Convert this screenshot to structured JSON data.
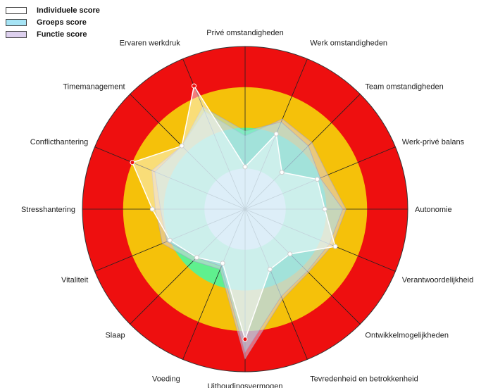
{
  "legend": {
    "items": [
      {
        "label": "Individuele score",
        "color": "#ffffff"
      },
      {
        "label": "Groeps score",
        "color": "#a6e4f5"
      },
      {
        "label": "Functie score",
        "color": "#ddd0ee"
      }
    ]
  },
  "colors": {
    "red": "#ee0f0f",
    "orange": "#f5c10a",
    "green": "#5ff08e",
    "individual": "#ffffff",
    "group": "#a6e4f5",
    "function": "#ddd0ee"
  },
  "chart_data": {
    "type": "radar",
    "axes": [
      "Privé omstandigheden",
      "Werk omstandigheden",
      "Team omstandigheden",
      "Werk-privé balans",
      "Autonomie",
      "Verantwoordelijkheid",
      "Ontwikkelmogelijkheden",
      "Tevredenheid en betrokkenheid",
      "Uithoudingsvermogen",
      "Voeding",
      "Slaap",
      "Vitaliteit",
      "Stresshantering",
      "Conflicthantering",
      "Timemanagement",
      "Ervaren werkdruk"
    ],
    "range": [
      0,
      100
    ],
    "bands": [
      {
        "from": 0,
        "to": 25,
        "color": "#dbeef2"
      },
      {
        "from": 25,
        "to": 50,
        "color": "#5ff08e"
      },
      {
        "from": 50,
        "to": 75,
        "color": "#f5c10a"
      },
      {
        "from": 75,
        "to": 100,
        "color": "#ee0f0f"
      }
    ],
    "series": [
      {
        "name": "Functie score",
        "color": "#ddd0ee",
        "values": [
          45,
          60,
          58,
          55,
          62,
          58,
          55,
          60,
          92,
          40,
          45,
          55,
          55,
          62,
          55,
          65
        ]
      },
      {
        "name": "Groeps score",
        "color": "#a6e4f5",
        "values": [
          48,
          58,
          55,
          50,
          60,
          56,
          54,
          58,
          88,
          38,
          42,
          52,
          52,
          60,
          55,
          68
        ]
      },
      {
        "name": "Individuele score",
        "color": "#ffffff",
        "values": [
          26,
          50,
          32,
          48,
          49,
          60,
          39,
          40,
          80,
          36,
          42,
          50,
          57,
          75,
          55,
          82
        ]
      }
    ]
  }
}
